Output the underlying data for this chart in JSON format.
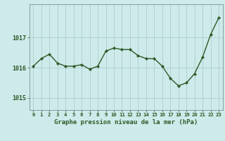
{
  "x": [
    0,
    1,
    2,
    3,
    4,
    5,
    6,
    7,
    8,
    9,
    10,
    11,
    12,
    13,
    14,
    15,
    16,
    17,
    18,
    19,
    20,
    21,
    22,
    23
  ],
  "y": [
    1016.05,
    1016.3,
    1016.45,
    1016.15,
    1016.05,
    1016.05,
    1016.1,
    1015.95,
    1016.05,
    1016.55,
    1016.65,
    1016.6,
    1016.6,
    1016.4,
    1016.3,
    1016.3,
    1016.05,
    1015.65,
    1015.4,
    1015.5,
    1015.8,
    1016.35,
    1017.1,
    1017.65
  ],
  "line_color": "#2d5a27",
  "marker": "D",
  "marker_size": 2.2,
  "bg_color": "#ceeaea",
  "grid_color": "#a8c8c8",
  "yticks": [
    1015,
    1016,
    1017
  ],
  "ylim": [
    1014.6,
    1018.1
  ],
  "xlim": [
    -0.5,
    23.5
  ],
  "xlabel": "Graphe pression niveau de la mer (hPa)",
  "xlabel_color": "#2d5a27",
  "xlabel_fontsize": 6.5,
  "tick_color": "#2d5a27",
  "ytick_fontsize": 6,
  "xtick_fontsize": 5.2,
  "line_width": 1.0
}
